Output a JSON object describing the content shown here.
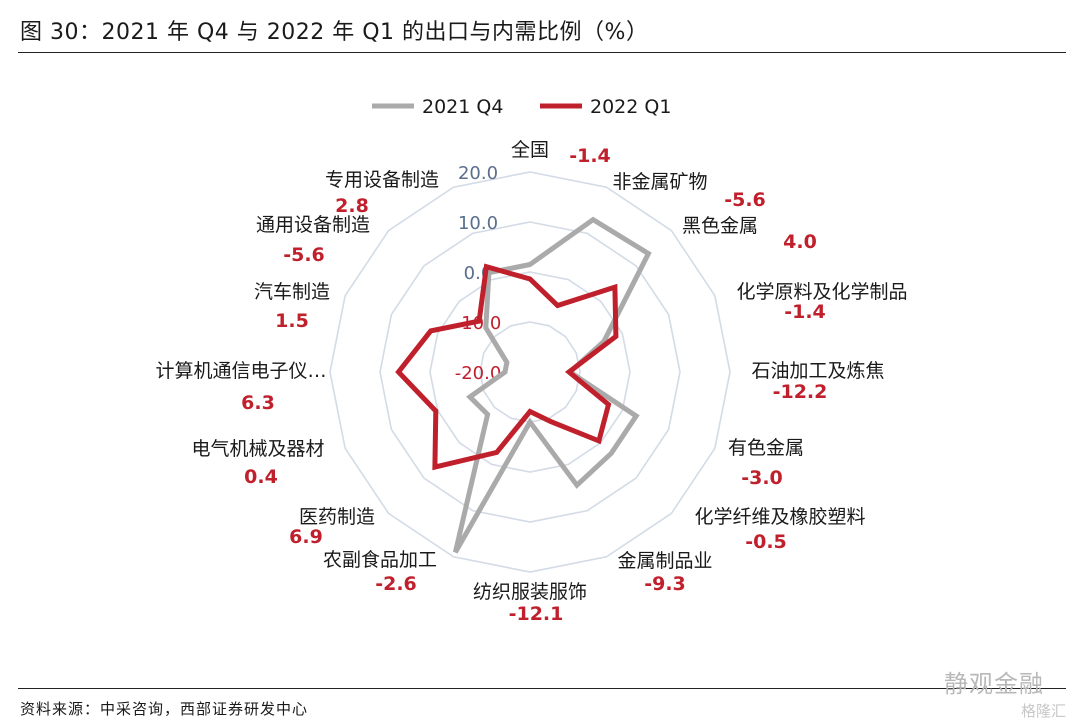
{
  "figure": {
    "title": "图 30：2021 年 Q4 与 2022 年 Q1 的出口与内需比例（%）",
    "source": "资料来源：中采咨询，西部证券研发中心",
    "watermark": "静观金融",
    "watermark_sub": "格隆汇"
  },
  "colors": {
    "q4": "#aaaaaa",
    "q1": "#c0202c",
    "grid": "#d3dbe6",
    "tick_upper": "#5a6f8c",
    "tick_lower": "#c0202c"
  },
  "chart_data": {
    "type": "radar",
    "title": "",
    "axis_range": [
      -20,
      20
    ],
    "ticks": [
      "20.0",
      "10.0",
      "0.0",
      "-10.0",
      "-20.0"
    ],
    "tick_values": [
      20,
      10,
      0,
      -10,
      -20
    ],
    "legend_position": "top-center",
    "categories": [
      "全国",
      "非金属矿物",
      "黑色金属",
      "化学原料及化学制品",
      "石油加工及炼焦",
      "有色金属",
      "化学纤维及橡胶塑料",
      "金属制品业",
      "纺织服装服饰",
      "农副食品加工",
      "医药制造",
      "电气机械及器材",
      "计算机通信电子仪…",
      "汽车制造",
      "通用设备制造",
      "专用设备制造"
    ],
    "series": [
      {
        "name": "2021 Q4",
        "values": [
          1.5,
          13.0,
          13.5,
          -4.0,
          -12.0,
          3.0,
          3.0,
          4.5,
          -10.0,
          19.0,
          -8.0,
          -7.0,
          -15.0,
          -15.0,
          -7.5,
          1.5
        ]
      },
      {
        "name": "2022 Q1",
        "values": [
          -1.4,
          -5.6,
          4.0,
          -1.4,
          -12.2,
          -3.0,
          -0.5,
          -9.3,
          -12.1,
          -2.6,
          6.9,
          0.4,
          6.3,
          1.5,
          -5.6,
          2.8
        ]
      }
    ],
    "value_labels": [
      "-1.4",
      "-5.6",
      "4.0",
      "-1.4",
      "-12.2",
      "-3.0",
      "-0.5",
      "-9.3",
      "-12.1",
      "-2.6",
      "6.9",
      "0.4",
      "6.3",
      "1.5",
      "-5.6",
      "2.8"
    ]
  }
}
